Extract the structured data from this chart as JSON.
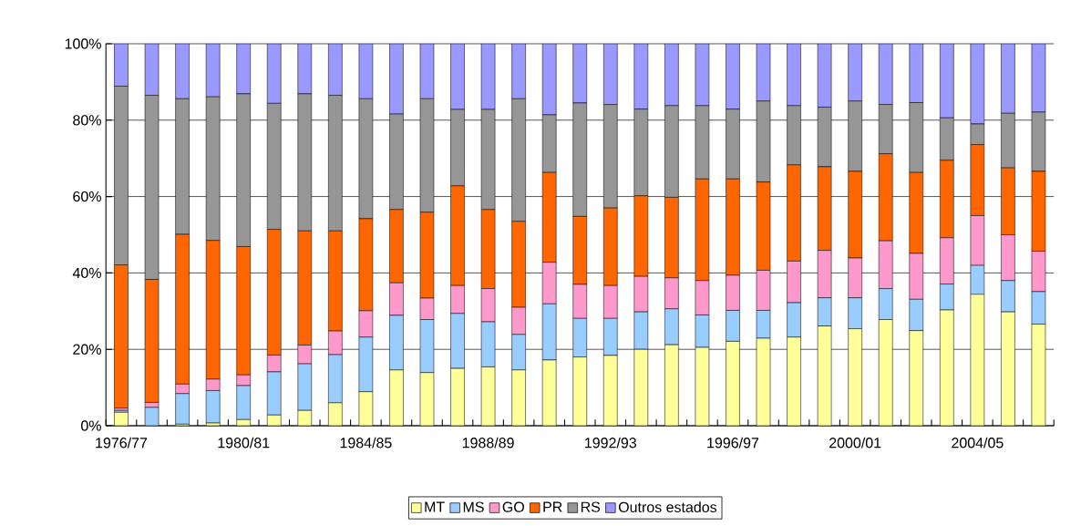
{
  "chart_data": {
    "type": "bar",
    "stacked": true,
    "categories": [
      "1976/77",
      null,
      null,
      null,
      "1980/81",
      null,
      null,
      null,
      "1984/85",
      null,
      null,
      null,
      "1988/89",
      null,
      null,
      null,
      "1992/93",
      null,
      null,
      null,
      "1996/97",
      null,
      null,
      null,
      "2000/01",
      null,
      null,
      null,
      "2004/05",
      null,
      null
    ],
    "series": [
      {
        "name": "MT",
        "color": "#ffff99",
        "values": [
          3.5,
          0,
          0.4,
          0.7,
          1.6,
          2.8,
          4.0,
          6.0,
          8.9,
          14.6,
          13.9,
          15.0,
          15.4,
          14.6,
          17.2,
          18.0,
          18.4,
          20.0,
          21.2,
          20.5,
          22.1,
          22.9,
          23.2,
          26.1,
          25.4,
          27.8,
          24.9,
          30.3,
          34.4,
          29.8,
          26.6
        ]
      },
      {
        "name": "MS",
        "color": "#99ccff",
        "values": [
          0.5,
          4.8,
          8.0,
          8.5,
          8.9,
          11.3,
          12.2,
          12.6,
          14.3,
          14.3,
          13.9,
          14.4,
          11.8,
          9.3,
          14.7,
          10.1,
          9.7,
          9.8,
          9.4,
          8.5,
          8.1,
          7.3,
          9.0,
          7.4,
          8.1,
          8.1,
          8.2,
          6.8,
          7.6,
          8.2,
          8.5
        ]
      },
      {
        "name": "GO",
        "color": "#ff99cc",
        "values": [
          0.6,
          1.3,
          2.5,
          3.0,
          2.8,
          4.4,
          4.9,
          6.2,
          6.9,
          8.5,
          5.6,
          7.3,
          8.7,
          7.1,
          10.9,
          8.9,
          8.6,
          9.3,
          8.1,
          9.0,
          9.2,
          10.5,
          10.9,
          12.4,
          10.4,
          12.5,
          12.0,
          12.1,
          13.0,
          12.0,
          10.6
        ]
      },
      {
        "name": "PR",
        "color": "#ff6600",
        "values": [
          37.5,
          32.2,
          39.2,
          36.3,
          33.6,
          32.9,
          29.9,
          26.2,
          24.1,
          19.2,
          22.5,
          26.1,
          20.7,
          22.5,
          23.5,
          17.8,
          20.3,
          21.1,
          21.1,
          26.6,
          25.2,
          23.1,
          25.2,
          21.9,
          22.7,
          22.8,
          21.2,
          20.3,
          18.6,
          17.5,
          20.9
        ]
      },
      {
        "name": "RS",
        "color": "#969696",
        "values": [
          46.8,
          48.2,
          35.5,
          37.6,
          40.0,
          33.0,
          35.9,
          35.5,
          31.4,
          25.0,
          29.7,
          20.0,
          26.2,
          32.1,
          15.1,
          29.7,
          27.1,
          22.7,
          24.0,
          19.2,
          18.3,
          21.2,
          15.5,
          15.6,
          18.4,
          12.9,
          18.3,
          11.1,
          5.4,
          14.3,
          15.5
        ]
      },
      {
        "name": "Outros estados",
        "color": "#9999ff",
        "values": [
          11.1,
          13.5,
          14.4,
          13.9,
          13.1,
          15.6,
          13.1,
          13.5,
          14.4,
          18.4,
          14.4,
          17.2,
          17.2,
          14.4,
          18.6,
          15.5,
          15.9,
          17.1,
          16.2,
          16.2,
          17.1,
          15.0,
          16.2,
          16.6,
          15.0,
          15.9,
          15.4,
          19.4,
          21.0,
          18.2,
          17.9
        ]
      }
    ],
    "ylim": [
      0,
      100
    ],
    "yticks": [
      {
        "value": 0,
        "label": "0%"
      },
      {
        "value": 20,
        "label": "20%"
      },
      {
        "value": 40,
        "label": "40%"
      },
      {
        "value": 60,
        "label": "60%"
      },
      {
        "value": 80,
        "label": "80%"
      },
      {
        "value": 100,
        "label": "100%"
      }
    ],
    "grid": "y",
    "legend": "bottom"
  }
}
